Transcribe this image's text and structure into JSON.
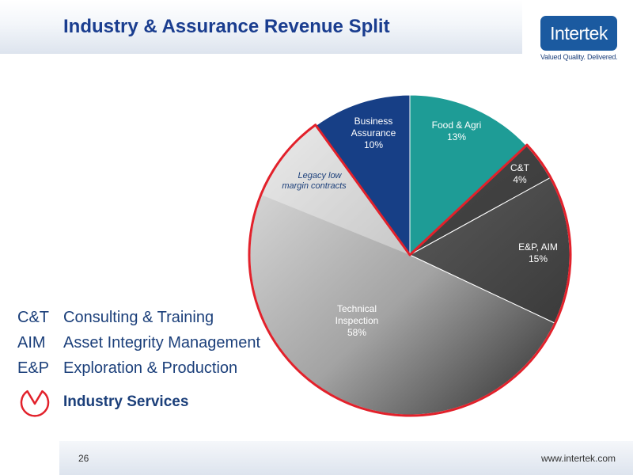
{
  "header": {
    "title": "Industry & Assurance Revenue Split"
  },
  "logo": {
    "name": "Intertek",
    "tagline": "Valued Quality. Delivered."
  },
  "chart_data": {
    "type": "pie",
    "title": "",
    "slices": [
      {
        "name": "Food & Agri",
        "value_label": "13%",
        "value": 13,
        "color": "#1e9c96",
        "text_color": "#ffffff"
      },
      {
        "name": "C&T",
        "value_label": "4%",
        "value": 4,
        "color": "#4d4d4d",
        "text_color": "#ffffff"
      },
      {
        "name": "E&P, AIM",
        "value_label": "15%",
        "value": 15,
        "color": "#5e5e5e",
        "text_color": "#ffffff"
      },
      {
        "name": "Technical Inspection",
        "value_label": "58%",
        "value": 58,
        "color": "#8f8f8f",
        "text_color": "#ffffff"
      },
      {
        "name": "Business Assurance",
        "value_label": "10%",
        "value": 10,
        "color": "#173f86",
        "text_color": "#ffffff"
      }
    ],
    "annotations": [
      {
        "text": "Legacy low margin contracts",
        "style": "italic"
      }
    ],
    "highlight": {
      "label": "Industry Services",
      "color": "#e2212b",
      "covers": [
        "C&T",
        "E&P, AIM",
        "Technical Inspection"
      ]
    }
  },
  "legend": [
    {
      "abbr": "C&T",
      "desc": "Consulting & Training"
    },
    {
      "abbr": "AIM",
      "desc": "Asset Integrity Management"
    },
    {
      "abbr": "E&P",
      "desc": "Exploration & Production"
    }
  ],
  "industry_services_label": "Industry Services",
  "footer": {
    "page_number": "26",
    "website": "www.intertek.com"
  }
}
